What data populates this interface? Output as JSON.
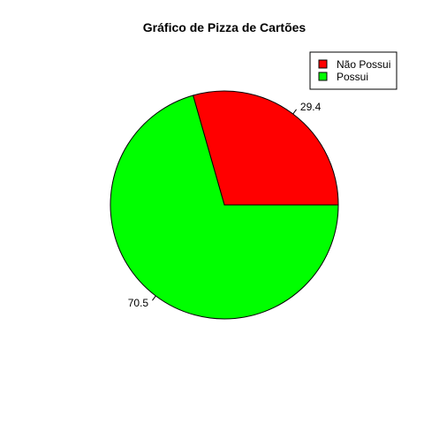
{
  "chart_data": {
    "type": "pie",
    "title": "Gráfico de Pizza de Cartões",
    "slices": [
      {
        "label": "Não Possui",
        "value": 29.4,
        "value_label": "29.4",
        "color": "#ff0000"
      },
      {
        "label": "Possui",
        "value": 70.5,
        "value_label": "70.5",
        "color": "#00ff00"
      }
    ],
    "start_angle_deg": 0,
    "direction": "counterclockwise",
    "legend_position": "top-right",
    "border_color": "#000000"
  }
}
